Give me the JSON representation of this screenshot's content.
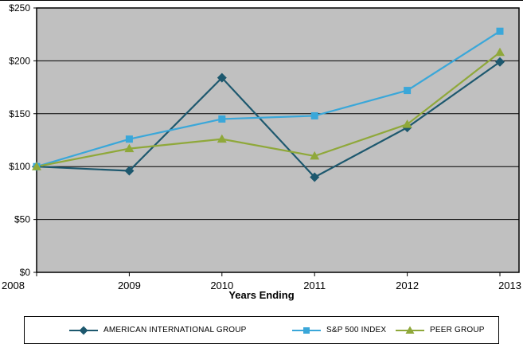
{
  "chart_data": {
    "type": "line",
    "title": "",
    "xlabel": "Years Ending",
    "ylabel": "",
    "categories": [
      "2008",
      "2009",
      "2010",
      "2011",
      "2012",
      "2013"
    ],
    "ylim": [
      0,
      250
    ],
    "ytick_step": 50,
    "ytick_labels": [
      "$0",
      "$50",
      "$100",
      "$150",
      "$200",
      "$250"
    ],
    "grid": true,
    "plot_bg": "#c0c0c0",
    "legend_position": "bottom",
    "series": [
      {
        "name": "AMERICAN INTERNATIONAL GROUP",
        "marker": "diamond",
        "color": "#1d586e",
        "values": [
          100,
          96,
          184,
          90,
          137,
          199
        ]
      },
      {
        "name": "S&P 500 INDEX",
        "marker": "square",
        "color": "#3aa7d9",
        "values": [
          100,
          126,
          145,
          148,
          172,
          228
        ]
      },
      {
        "name": "PEER GROUP",
        "marker": "triangle",
        "color": "#8fa83a",
        "values": [
          100,
          117,
          126,
          110,
          140,
          208
        ]
      }
    ]
  }
}
